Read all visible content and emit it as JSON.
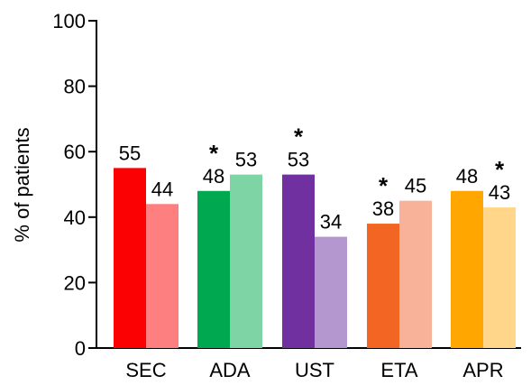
{
  "chart_data": {
    "type": "bar",
    "title": "",
    "xlabel": "",
    "ylabel": "% of patients",
    "ylim": [
      0,
      100
    ],
    "yticks": [
      0,
      20,
      40,
      60,
      80,
      100
    ],
    "grid": false,
    "legend": "none",
    "categories": [
      "SEC",
      "ADA",
      "UST",
      "ETA",
      "APR"
    ],
    "bars": [
      {
        "category": "SEC",
        "values": [
          55,
          44
        ],
        "colors": [
          "#fb0103",
          "#fe7f7f"
        ],
        "significant": [
          false,
          false
        ]
      },
      {
        "category": "ADA",
        "values": [
          48,
          53
        ],
        "colors": [
          "#00a94f",
          "#7fd4a6"
        ],
        "significant": [
          true,
          false
        ]
      },
      {
        "category": "UST",
        "values": [
          53,
          34
        ],
        "colors": [
          "#7030a0",
          "#b597d0"
        ],
        "significant": [
          true,
          false
        ]
      },
      {
        "category": "ETA",
        "values": [
          38,
          45
        ],
        "colors": [
          "#f26522",
          "#f7b299"
        ],
        "significant": [
          true,
          false
        ]
      },
      {
        "category": "APR",
        "values": [
          48,
          43
        ],
        "colors": [
          "#ffa600",
          "#ffd68a"
        ],
        "significant": [
          false,
          true
        ]
      }
    ],
    "significance_marker": "*"
  }
}
